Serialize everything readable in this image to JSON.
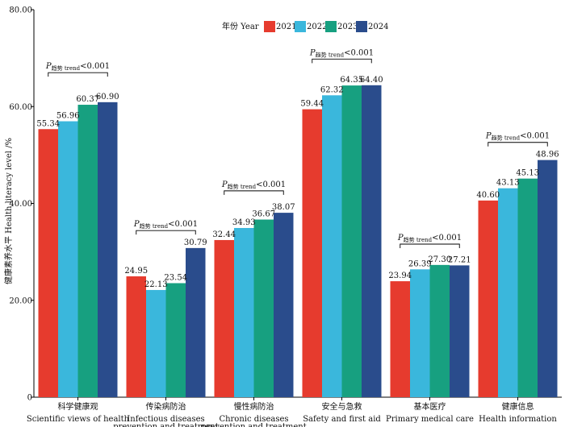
{
  "chart_data": {
    "type": "bar",
    "ylabel": "健康素养水平 Health literacy level /%",
    "ylim": [
      0,
      80
    ],
    "yticks": [
      "0",
      "20.00",
      "40.00",
      "60.00",
      "80.00"
    ],
    "ytick_values": [
      0,
      20,
      40,
      60,
      80
    ],
    "grid": false,
    "legend": {
      "title": "年份 Year",
      "placement": "top-center"
    },
    "categories": [
      {
        "zh": "科学健康观",
        "en": [
          "Scientific views of health"
        ]
      },
      {
        "zh": "传染病防治",
        "en": [
          "Infectious diseases",
          "prevention and treatment"
        ]
      },
      {
        "zh": "慢性病防治",
        "en": [
          "Chronic diseases",
          "prevention and treatment"
        ]
      },
      {
        "zh": "安全与急救",
        "en": [
          "Safety and first aid"
        ]
      },
      {
        "zh": "基本医疗",
        "en": [
          "Primary medical care"
        ]
      },
      {
        "zh": "健康信息",
        "en": [
          "Health information"
        ]
      }
    ],
    "series": [
      {
        "name": "2021",
        "color": "#e63b2e",
        "values": [
          55.34,
          24.95,
          32.44,
          59.44,
          23.94,
          40.6
        ],
        "labels": [
          "55.34",
          "24.95",
          "32.44",
          "59.44",
          "23.94",
          "40.60"
        ]
      },
      {
        "name": "2022",
        "color": "#3ab7dc",
        "values": [
          56.96,
          22.13,
          34.93,
          62.32,
          26.39,
          43.13
        ],
        "labels": [
          "56.96",
          "22.13",
          "34.93",
          "62.32",
          "26.39",
          "43.13"
        ]
      },
      {
        "name": "2023",
        "color": "#17a080",
        "values": [
          60.37,
          23.54,
          36.67,
          64.35,
          27.3,
          45.13
        ],
        "labels": [
          "60.37",
          "23.54",
          "36.67",
          "64.35",
          "27.30",
          "45.13"
        ]
      },
      {
        "name": "2024",
        "color": "#2a4c8c",
        "values": [
          60.9,
          30.79,
          38.07,
          64.4,
          27.21,
          48.96
        ],
        "labels": [
          "60.90",
          "30.79",
          "38.07",
          "64.40",
          "27.21",
          "48.96"
        ]
      }
    ],
    "annotations": [
      {
        "category": 0,
        "p": "P",
        "sub": "趋势 trend",
        "text": "<0.001",
        "value": 67.0
      },
      {
        "category": 1,
        "p": "P",
        "sub": "趋势 trend",
        "text": "<0.001",
        "value": 34.4
      },
      {
        "category": 2,
        "p": "P",
        "sub": "趋势 trend",
        "text": "<0.001",
        "value": 42.6
      },
      {
        "category": 3,
        "p": "P",
        "sub": "趋势 trend",
        "text": "<0.001",
        "value": 69.8
      },
      {
        "category": 4,
        "p": "P",
        "sub": "趋势 trend",
        "text": "<0.001",
        "value": 31.6
      },
      {
        "category": 5,
        "p": "P",
        "sub": "趋势 trend",
        "text": "<0.001",
        "value": 52.6
      }
    ]
  }
}
